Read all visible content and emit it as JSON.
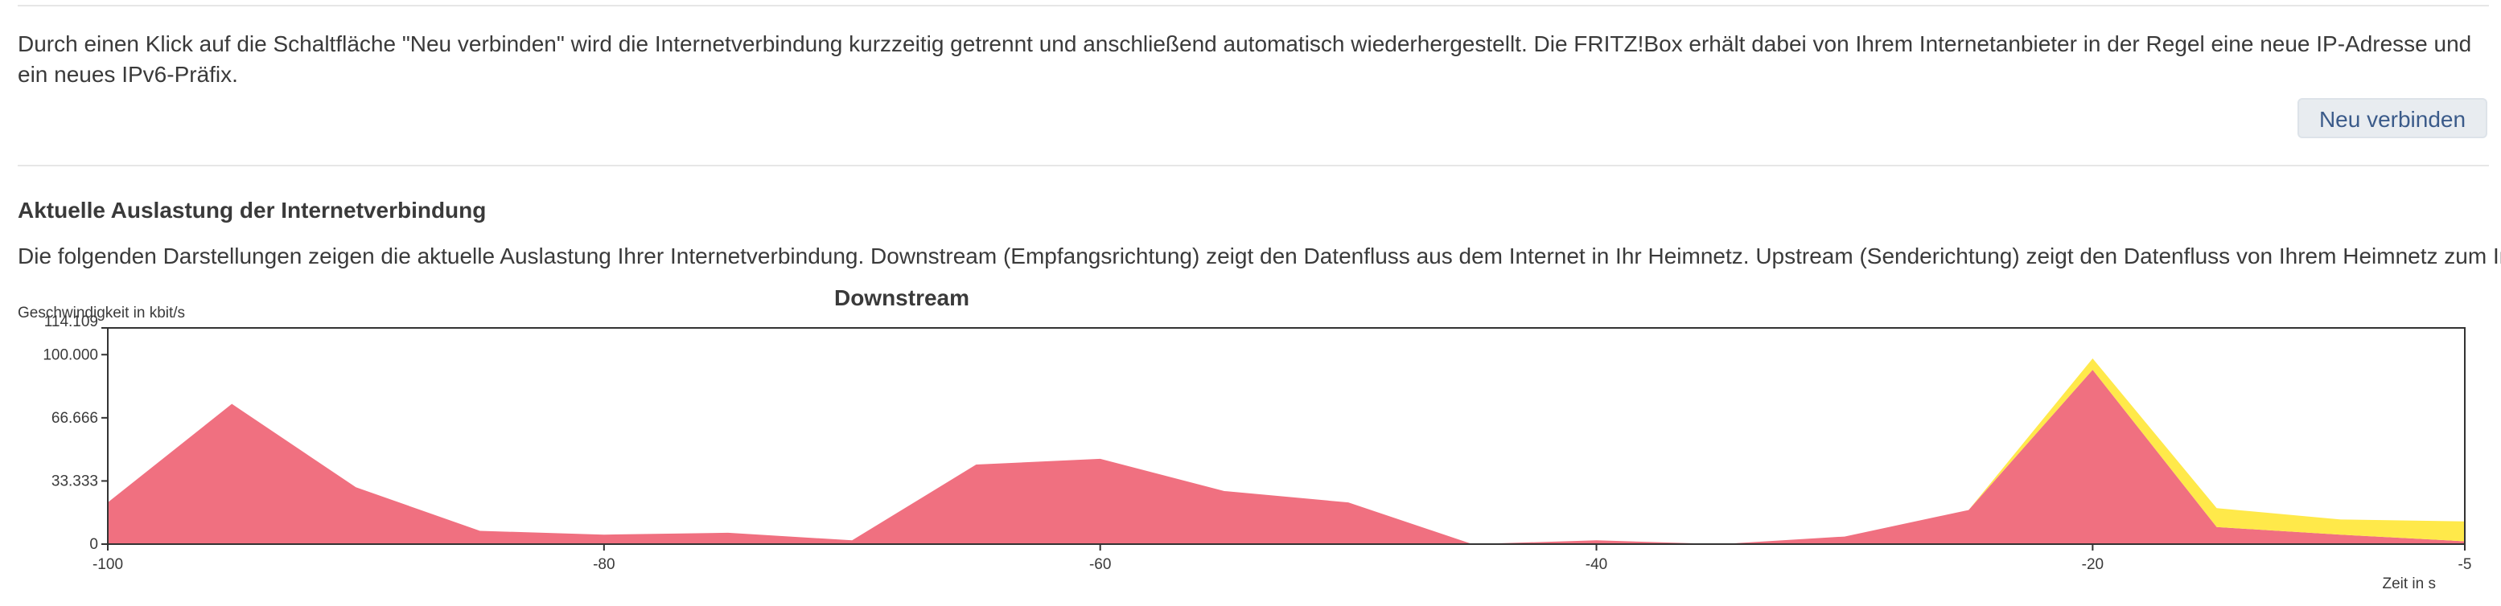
{
  "reconnect": {
    "description": "Durch einen Klick auf die Schaltfläche \"Neu verbinden\" wird die Internetverbindung kurzzeitig getrennt und anschließend automatisch wiederhergestellt. Die FRITZ!Box erhält dabei von Ihrem Internetanbieter in der Regel eine neue IP-Adresse und ein neues IPv6-Präfix.",
    "button_label": "Neu verbinden"
  },
  "utilization": {
    "heading": "Aktuelle Auslastung der Internetverbindung",
    "description": "Die folgenden Darstellungen zeigen die aktuelle Auslastung Ihrer Internetverbindung. Downstream (Empfangsrichtung) zeigt den Datenfluss aus dem Internet in Ihr Heimnetz. Upstream (Senderichtung) zeigt den Datenfluss von Ihrem Heimnetz zum Internet."
  },
  "chart_data": {
    "type": "area",
    "title": "Downstream",
    "ylabel": "Geschwindigkeit in kbit/s",
    "xlabel": "Zeit in s",
    "ylim": [
      0,
      114109
    ],
    "xlim": [
      -100,
      -5
    ],
    "yticks": [
      0,
      33333,
      66666,
      100000,
      114109
    ],
    "ytick_labels": [
      "0",
      "33.333",
      "66.666",
      "100.000",
      "114.109"
    ],
    "xticks": [
      -100,
      -80,
      -60,
      -40,
      -20,
      -5
    ],
    "stacked": true,
    "x": [
      -100,
      -95,
      -90,
      -85,
      -80,
      -75,
      -70,
      -65,
      -60,
      -55,
      -50,
      -45,
      -40,
      -35,
      -30,
      -25,
      -20,
      -15,
      -10,
      -5
    ],
    "series": [
      {
        "color": "#f07080",
        "values": [
          22000,
          74000,
          30000,
          7000,
          5000,
          6000,
          2000,
          42000,
          45000,
          28000,
          22000,
          0,
          2000,
          0,
          4000,
          18000,
          92000,
          9000,
          5000,
          1500
        ]
      },
      {
        "color": "#ffe94a",
        "values": [
          0,
          0,
          0,
          0,
          0,
          0,
          0,
          0,
          0,
          0,
          0,
          0,
          0,
          0,
          0,
          0,
          6000,
          10000,
          8000,
          10500
        ]
      }
    ]
  }
}
